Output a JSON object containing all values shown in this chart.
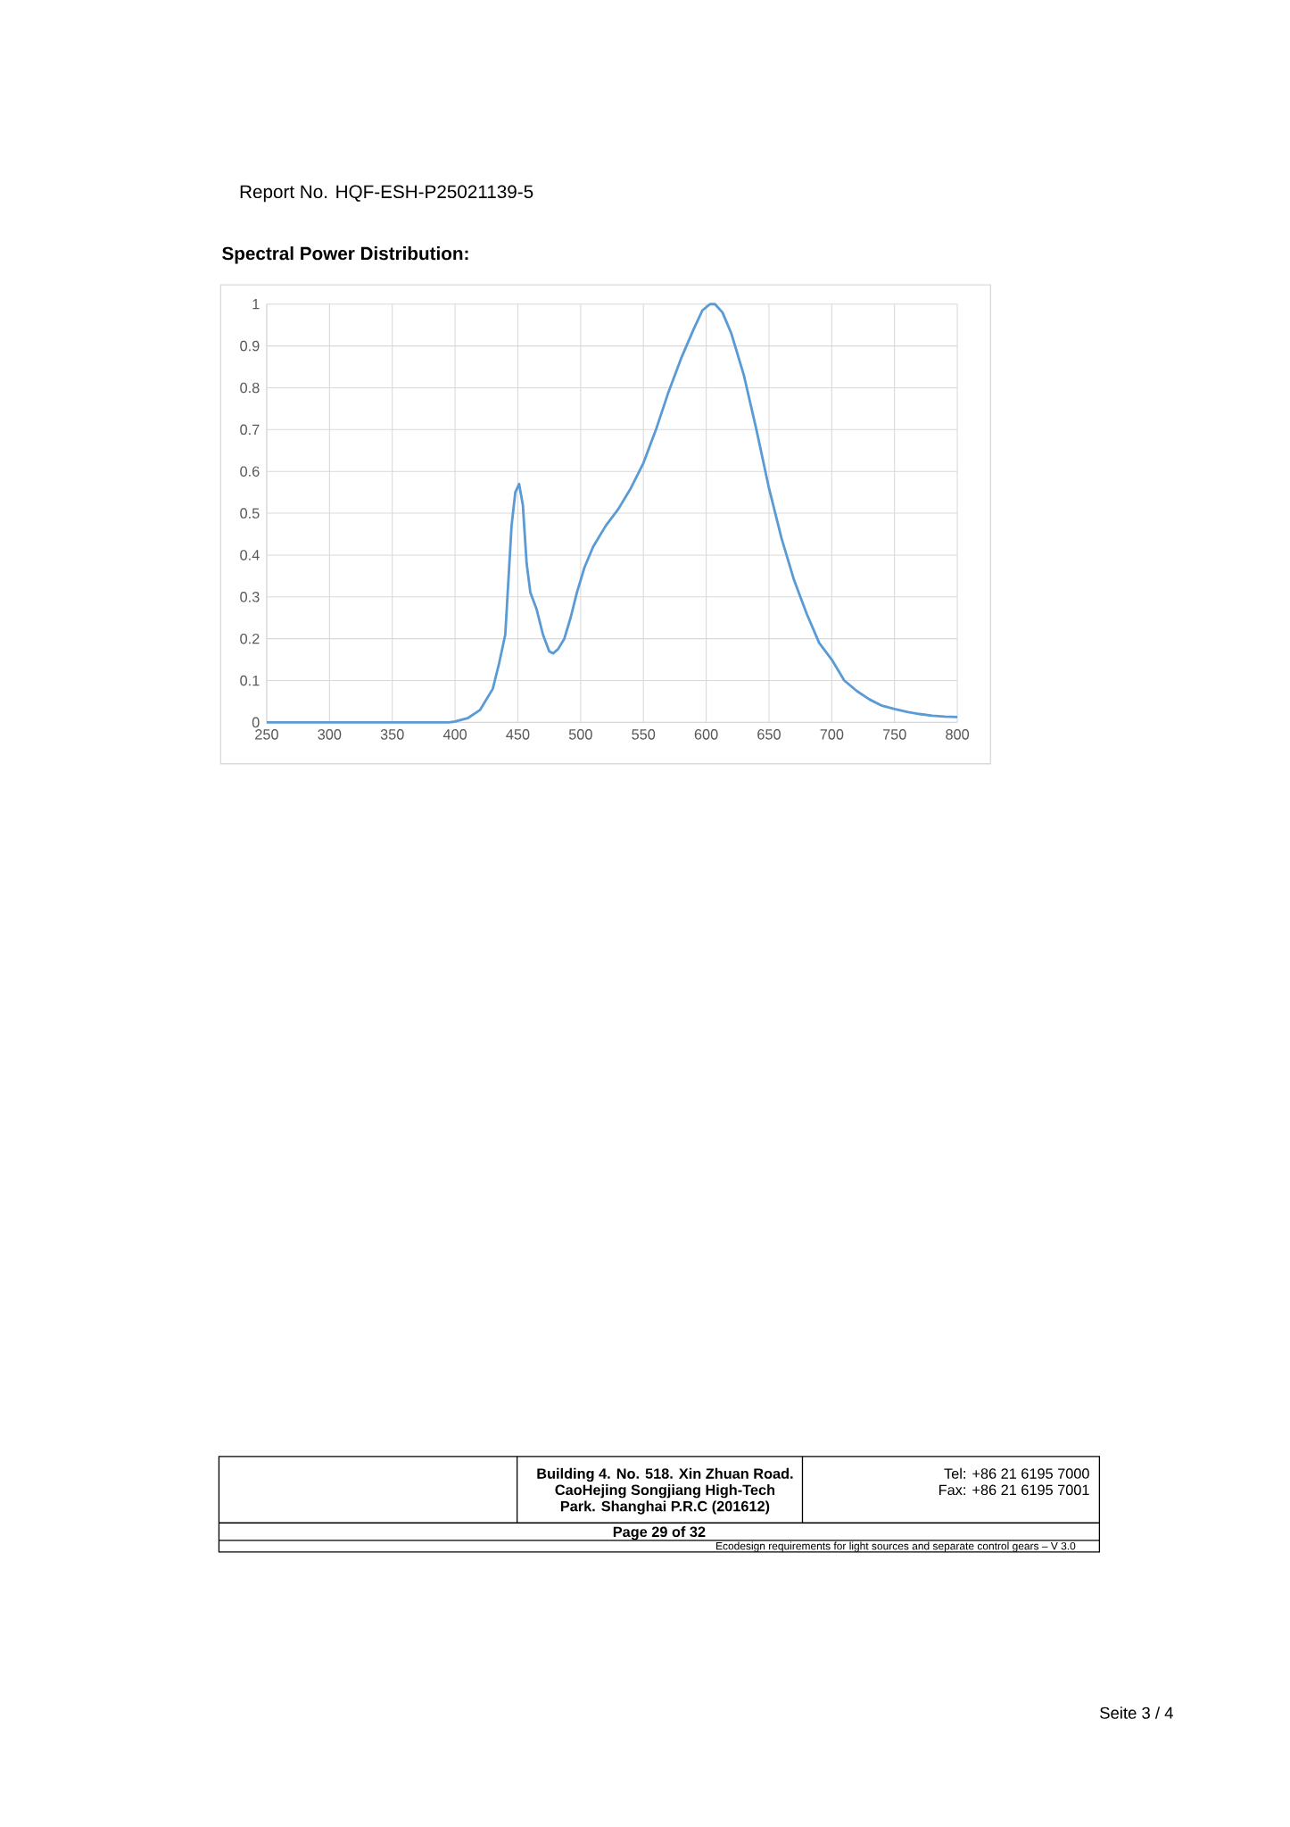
{
  "chart_data": {
    "type": "line",
    "title": "Spectral Power Distribution:",
    "x": [
      250,
      300,
      350,
      395,
      400,
      410,
      420,
      430,
      435,
      440,
      445,
      448,
      451,
      454,
      457,
      460,
      465,
      470,
      475,
      478,
      482,
      487,
      492,
      497,
      503,
      510,
      520,
      530,
      540,
      550,
      560,
      570,
      580,
      590,
      597,
      603,
      607,
      613,
      620,
      630,
      640,
      650,
      660,
      670,
      680,
      690,
      700,
      710,
      720,
      730,
      740,
      750,
      760,
      770,
      780,
      790,
      800
    ],
    "values": [
      0,
      0,
      0,
      0,
      0.002,
      0.01,
      0.03,
      0.08,
      0.14,
      0.21,
      0.47,
      0.55,
      0.57,
      0.52,
      0.38,
      0.31,
      0.27,
      0.21,
      0.17,
      0.165,
      0.175,
      0.2,
      0.25,
      0.31,
      0.37,
      0.42,
      0.47,
      0.51,
      0.56,
      0.62,
      0.7,
      0.79,
      0.87,
      0.94,
      0.985,
      1.0,
      1.0,
      0.98,
      0.93,
      0.83,
      0.7,
      0.56,
      0.44,
      0.34,
      0.26,
      0.19,
      0.15,
      0.1,
      0.075,
      0.055,
      0.04,
      0.032,
      0.025,
      0.02,
      0.016,
      0.014,
      0.013
    ],
    "color": "#5b9bd5",
    "xlim": [
      250,
      800
    ],
    "xticks": [
      250,
      300,
      350,
      400,
      450,
      500,
      550,
      600,
      650,
      700,
      750,
      800
    ],
    "ylim": [
      0,
      1
    ],
    "yticks": [
      0,
      0.1,
      0.2,
      0.3,
      0.4,
      0.5,
      0.6,
      0.7,
      0.8,
      0.9,
      1
    ],
    "grid": true,
    "annotations": [
      "Report No. HQF-ESH-P25021139-5",
      "Building 4. No. 518. Xin Zhuan Road.",
      "CaoHejing Songjiang High-Tech",
      "Park. Shanghai P.R.C (201612)",
      "Tel: +86 21 6195 7000",
      "Fax: +86 21 6195 7001",
      "Page 29 of 32",
      "Ecodesign requirements for light sources and separate control gears – V 3.0",
      "Seite 3 / 4"
    ]
  }
}
